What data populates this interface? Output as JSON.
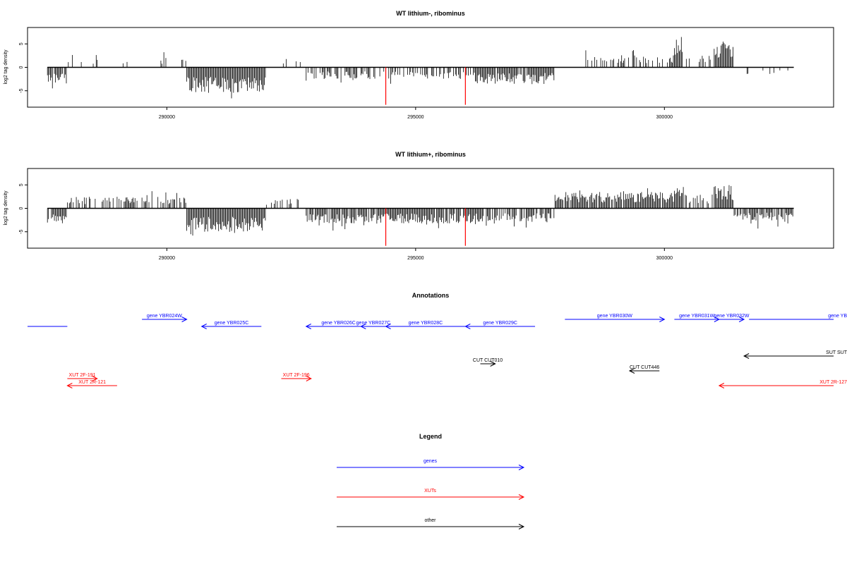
{
  "colors": {
    "signal": "#000000",
    "highlight": "#ff0000",
    "genes": "#0000ff",
    "xuts": "#ff0000",
    "other": "#000000",
    "frame": "#000000"
  },
  "chart_data": [
    {
      "type": "bar",
      "title": "WT lithium-, ribominus",
      "ylabel": "log2 tag density",
      "xlim": [
        287200,
        303400
      ],
      "ylim": [
        -8.5,
        8.5
      ],
      "xticks": [
        290000,
        295000,
        300000
      ],
      "yticks": [
        -5,
        0,
        5
      ],
      "grid": false,
      "data_range": [
        287600,
        302600
      ],
      "highlight_x": [
        294400,
        296000
      ],
      "highlight_y": -8,
      "segments": [
        {
          "from": 287600,
          "to": 288000,
          "strand": -1,
          "mag": 3.5,
          "density": 0.9
        },
        {
          "from": 288000,
          "to": 289800,
          "strand": 1,
          "mag": 1.5,
          "density": 0.08
        },
        {
          "from": 289800,
          "to": 290400,
          "strand": 1,
          "mag": 2.2,
          "density": 0.3
        },
        {
          "from": 290400,
          "to": 292000,
          "strand": -1,
          "mag": 5.5,
          "density": 1.0
        },
        {
          "from": 292000,
          "to": 292800,
          "strand": 1,
          "mag": 2.0,
          "density": 0.12
        },
        {
          "from": 292800,
          "to": 294200,
          "strand": -1,
          "mag": 2.5,
          "density": 0.55
        },
        {
          "from": 294200,
          "to": 296200,
          "strand": -1,
          "mag": 2.5,
          "density": 0.45
        },
        {
          "from": 296200,
          "to": 297800,
          "strand": -1,
          "mag": 3.5,
          "density": 0.95
        },
        {
          "from": 297800,
          "to": 298400,
          "strand": -1,
          "mag": 1.0,
          "density": 0.05
        },
        {
          "from": 298400,
          "to": 300200,
          "strand": 1,
          "mag": 2.6,
          "density": 0.45
        },
        {
          "from": 300200,
          "to": 300400,
          "strand": 1,
          "mag": 6.5,
          "density": 0.9
        },
        {
          "from": 300400,
          "to": 301000,
          "strand": 1,
          "mag": 2.5,
          "density": 0.3
        },
        {
          "from": 301000,
          "to": 301400,
          "strand": 1,
          "mag": 5.5,
          "density": 1.0
        },
        {
          "from": 301400,
          "to": 302600,
          "strand": -1,
          "mag": 1.5,
          "density": 0.15
        }
      ]
    },
    {
      "type": "bar",
      "title": "WT lithium+, ribominus",
      "ylabel": "log2 tag density",
      "xlim": [
        287200,
        303400
      ],
      "ylim": [
        -8.5,
        8.5
      ],
      "xticks": [
        290000,
        295000,
        300000
      ],
      "yticks": [
        -5,
        0,
        5
      ],
      "grid": false,
      "data_range": [
        287600,
        302600
      ],
      "highlight_x": [
        294400,
        296000
      ],
      "highlight_y": -8,
      "segments": [
        {
          "from": 287600,
          "to": 288000,
          "strand": -1,
          "mag": 3.5,
          "density": 0.9
        },
        {
          "from": 288000,
          "to": 289000,
          "strand": 1,
          "mag": 2.5,
          "density": 0.5
        },
        {
          "from": 289000,
          "to": 290400,
          "strand": 1,
          "mag": 2.5,
          "density": 0.55
        },
        {
          "from": 290400,
          "to": 292000,
          "strand": -1,
          "mag": 5.0,
          "density": 1.0
        },
        {
          "from": 292000,
          "to": 292800,
          "strand": 1,
          "mag": 2.0,
          "density": 0.35
        },
        {
          "from": 292800,
          "to": 296200,
          "strand": -1,
          "mag": 3.2,
          "density": 0.85
        },
        {
          "from": 296200,
          "to": 297800,
          "strand": -1,
          "mag": 3.0,
          "density": 0.75
        },
        {
          "from": 297800,
          "to": 300200,
          "strand": 1,
          "mag": 3.5,
          "density": 0.95
        },
        {
          "from": 300200,
          "to": 300400,
          "strand": 1,
          "mag": 5.5,
          "density": 0.9
        },
        {
          "from": 300400,
          "to": 301000,
          "strand": 1,
          "mag": 3.0,
          "density": 0.5
        },
        {
          "from": 301000,
          "to": 301400,
          "strand": 1,
          "mag": 5.0,
          "density": 1.0
        },
        {
          "from": 301400,
          "to": 302600,
          "strand": -1,
          "mag": 2.5,
          "density": 0.85
        }
      ]
    }
  ],
  "annotations": {
    "title": "Annotations",
    "items": [
      {
        "label": "",
        "start": 287200,
        "end": 288000,
        "strand": "none",
        "category": "genes",
        "row": 2
      },
      {
        "label": "gene YBR024W",
        "start": 289500,
        "end": 290400,
        "strand": "+",
        "category": "genes",
        "row": 1
      },
      {
        "label": "gene YBR025C",
        "start": 290700,
        "end": 291900,
        "strand": "-",
        "category": "genes",
        "row": 2
      },
      {
        "label": "gene YBR026C",
        "start": 292800,
        "end": 294100,
        "strand": "-",
        "category": "genes",
        "row": 2
      },
      {
        "label": "gene YBR027C",
        "start": 293900,
        "end": 294400,
        "strand": "-",
        "category": "genes",
        "row": 2
      },
      {
        "label": "gene YBR028C",
        "start": 294400,
        "end": 296000,
        "strand": "-",
        "category": "genes",
        "row": 2
      },
      {
        "label": "gene YBR029C",
        "start": 296000,
        "end": 297400,
        "strand": "-",
        "category": "genes",
        "row": 2
      },
      {
        "label": "gene YBR030W",
        "start": 298000,
        "end": 300000,
        "strand": "+",
        "category": "genes",
        "row": 1
      },
      {
        "label": "gene YBR031W",
        "start": 300200,
        "end": 301100,
        "strand": "+",
        "category": "genes",
        "row": 1
      },
      {
        "label": "gene YBR032W",
        "start": 301100,
        "end": 301600,
        "strand": "+",
        "category": "genes",
        "row": 1
      },
      {
        "label": "gene YB",
        "start": 301700,
        "end": 303400,
        "strand": "none",
        "category": "genes",
        "row": 1
      },
      {
        "label": "SUT SUT",
        "start": 301600,
        "end": 303400,
        "strand": "-",
        "category": "other",
        "row": 3
      },
      {
        "label": "CUT CUT010",
        "start": 296300,
        "end": 296600,
        "strand": "+",
        "category": "other",
        "row": 4
      },
      {
        "label": "CUT CUT446",
        "start": 299300,
        "end": 299900,
        "strand": "-",
        "category": "other",
        "row": 5
      },
      {
        "label": "XUT 2F-191",
        "start": 288000,
        "end": 288600,
        "strand": "+",
        "category": "xuts",
        "row": 6
      },
      {
        "label": "XUT 2R-121",
        "start": 288000,
        "end": 289000,
        "strand": "-",
        "category": "xuts",
        "row": 7
      },
      {
        "label": "XUT 2F-196",
        "start": 292300,
        "end": 292900,
        "strand": "+",
        "category": "xuts",
        "row": 6
      },
      {
        "label": "XUT 2R-127",
        "start": 301100,
        "end": 303400,
        "strand": "-",
        "category": "xuts",
        "row": 7
      }
    ]
  },
  "legend": {
    "title": "Legend",
    "items": [
      {
        "label": "genes",
        "category": "genes"
      },
      {
        "label": "XUTs",
        "category": "xuts"
      },
      {
        "label": "other",
        "category": "other"
      }
    ]
  }
}
